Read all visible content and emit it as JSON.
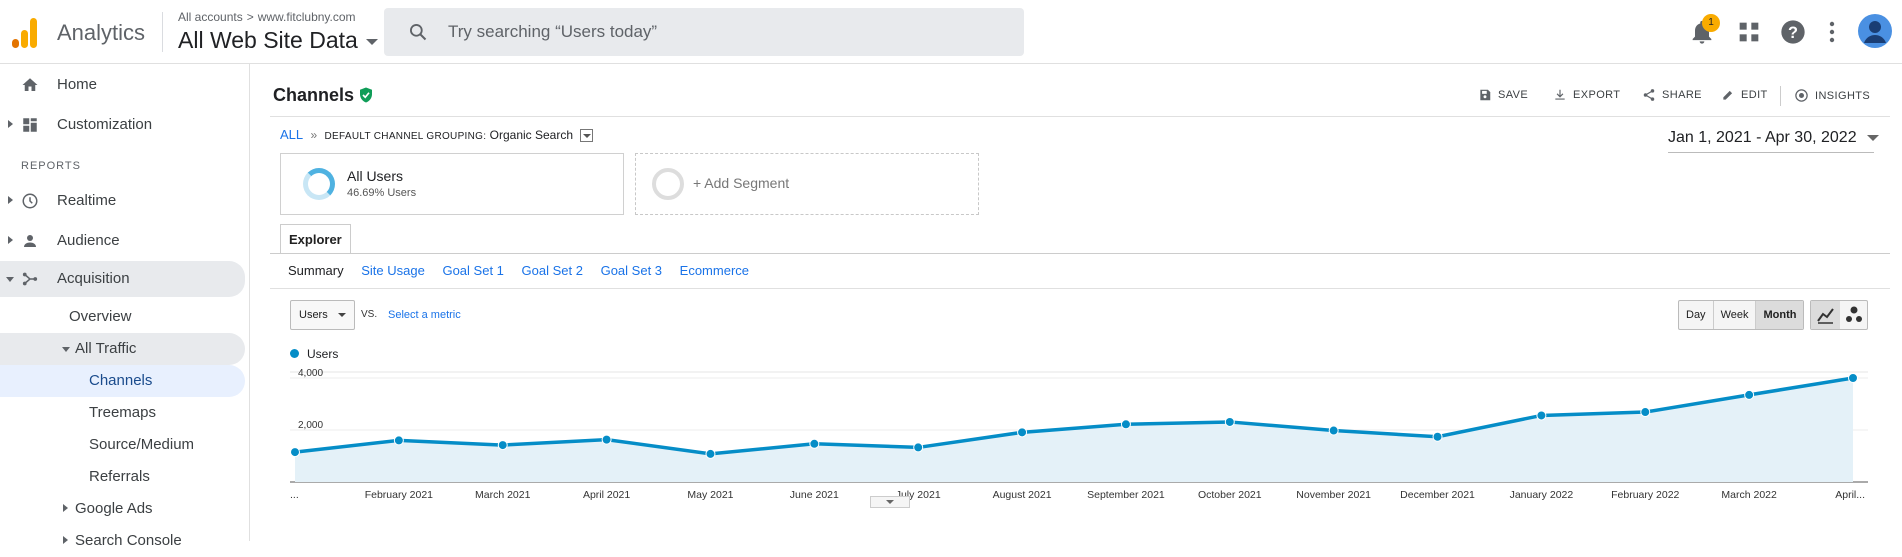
{
  "app": {
    "name": "Analytics",
    "account_path": "All accounts",
    "property": "www.fitclubny.com",
    "view": "All Web Site Data",
    "search_placeholder": "Try searching “Users today”",
    "notification_count": "1"
  },
  "sidebar": {
    "reports_label": "REPORTS",
    "items": [
      {
        "label": "Home",
        "icon": "home-icon"
      },
      {
        "label": "Customization",
        "icon": "dashboard-icon"
      },
      {
        "label": "Realtime",
        "icon": "clock-icon"
      },
      {
        "label": "Audience",
        "icon": "person-icon"
      },
      {
        "label": "Acquisition",
        "icon": "acquisition-icon"
      },
      {
        "label": "Overview"
      },
      {
        "label": "All Traffic"
      },
      {
        "label": "Channels"
      },
      {
        "label": "Treemaps"
      },
      {
        "label": "Source/Medium"
      },
      {
        "label": "Referrals"
      },
      {
        "label": "Google Ads"
      },
      {
        "label": "Search Console"
      }
    ]
  },
  "page": {
    "title": "Channels",
    "actions": [
      "SAVE",
      "EXPORT",
      "SHARE",
      "EDIT",
      "INSIGHTS"
    ],
    "breadcrumb_all": "ALL",
    "breadcrumb_sep": "»",
    "breadcrumb_group": "DEFAULT CHANNEL GROUPING:",
    "breadcrumb_value": "Organic Search",
    "date_range": "Jan 1, 2021 - Apr 30, 2022"
  },
  "segments": {
    "segment_name": "All Users",
    "segment_sub": "46.69% Users",
    "add_label": "+ Add Segment"
  },
  "explorer": {
    "tab": "Explorer",
    "subtabs": [
      "Summary",
      "Site Usage",
      "Goal Set 1",
      "Goal Set 2",
      "Goal Set 3",
      "Ecommerce"
    ],
    "metric": "Users",
    "vs": "VS.",
    "select_metric": "Select a metric",
    "granularity": [
      "Day",
      "Week",
      "Month"
    ],
    "granularity_selected": "Month"
  },
  "colors": {
    "series": "#058dc7",
    "fill": "#e4f1f8",
    "accent": "#1a73e8"
  },
  "chart_data": {
    "type": "area",
    "series": [
      {
        "name": "Users",
        "values": [
          1150,
          1600,
          1420,
          1630,
          1080,
          1470,
          1330,
          1910,
          2220,
          2310,
          1980,
          1740,
          2560,
          2690,
          3350,
          4000
        ]
      }
    ],
    "categories": [
      "...",
      "February 2021",
      "March 2021",
      "April 2021",
      "May 2021",
      "June 2021",
      "July 2021",
      "August 2021",
      "September 2021",
      "October 2021",
      "November 2021",
      "December 2021",
      "January 2022",
      "February 2022",
      "March 2022",
      "April..."
    ],
    "ytick_labels": [
      "4,000",
      "2,000"
    ],
    "ylim": [
      0,
      4500
    ]
  }
}
